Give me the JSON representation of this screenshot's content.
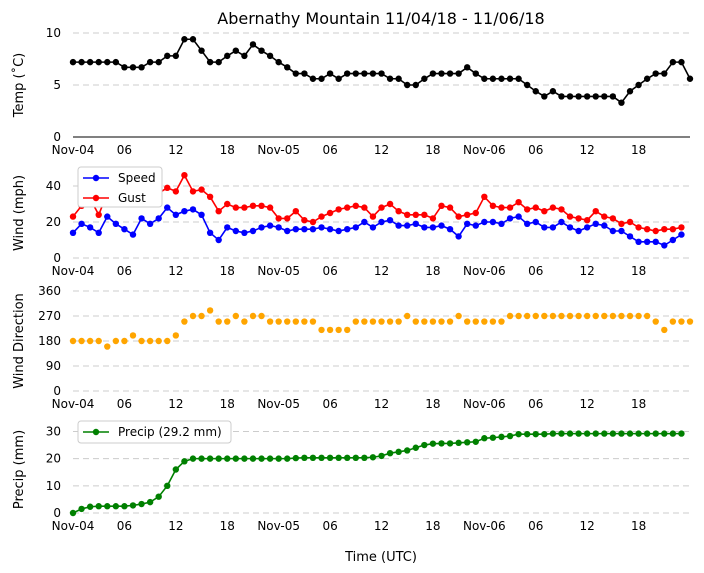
{
  "title": "Abernathy Mountain 11/04/18 - 11/06/18",
  "xlabel": "Time (UTC)",
  "x_ticks": [
    "Nov-04",
    "06",
    "12",
    "18",
    "Nov-05",
    "06",
    "12",
    "18",
    "Nov-06",
    "06",
    "12",
    "18"
  ],
  "colors": {
    "temp": "#000000",
    "speed": "#0000ff",
    "gust": "#ff0000",
    "direction": "#ffa500",
    "precip": "#008000",
    "grid": "#cccccc"
  },
  "chart_data": [
    {
      "type": "line",
      "id": "temp",
      "ylabel": "Temp (˚C)",
      "ylim": [
        0,
        10
      ],
      "yticks": [
        0,
        5,
        10
      ],
      "grid": true,
      "series": [
        {
          "name": "Temp",
          "color": "#000000",
          "values": [
            7.2,
            7.2,
            7.2,
            7.2,
            7.2,
            7.2,
            6.7,
            6.7,
            6.7,
            7.2,
            7.2,
            7.8,
            7.8,
            9.4,
            9.4,
            8.3,
            7.2,
            7.2,
            7.8,
            8.3,
            7.8,
            8.9,
            8.3,
            7.8,
            7.2,
            6.7,
            6.1,
            6.1,
            5.6,
            5.6,
            6.1,
            5.6,
            6.1,
            6.1,
            6.1,
            6.1,
            6.1,
            5.6,
            5.6,
            5.0,
            5.0,
            5.6,
            6.1,
            6.1,
            6.1,
            6.1,
            6.7,
            6.1,
            5.6,
            5.6,
            5.6,
            5.6,
            5.6,
            5.0,
            4.4,
            3.9,
            4.4,
            3.9,
            3.9,
            3.9,
            3.9,
            3.9,
            3.9,
            3.9,
            3.3,
            4.4,
            5.0,
            5.6,
            6.1,
            6.1,
            7.2,
            7.2,
            5.6
          ]
        }
      ]
    },
    {
      "type": "line",
      "id": "wind",
      "ylabel": "Wind (mph)",
      "ylim": [
        0,
        50
      ],
      "yticks": [
        0,
        20,
        40
      ],
      "grid": true,
      "legend": "top-left",
      "series": [
        {
          "name": "Speed",
          "color": "#0000ff",
          "values": [
            14,
            19,
            17,
            14,
            23,
            19,
            16,
            13,
            22,
            19,
            22,
            28,
            24,
            26,
            27,
            24,
            14,
            10,
            17,
            15,
            14,
            15,
            17,
            18,
            17,
            15,
            16,
            16,
            16,
            17,
            16,
            15,
            16,
            17,
            20,
            17,
            20,
            21,
            18,
            18,
            19,
            17,
            17,
            18,
            16,
            12,
            19,
            18,
            20,
            20,
            19,
            22,
            23,
            19,
            20,
            17,
            17,
            20,
            17,
            15,
            17,
            19,
            18,
            15,
            15,
            12,
            9,
            9,
            9,
            7,
            10,
            13
          ]
        },
        {
          "name": "Gust",
          "color": "#ff0000",
          "values": [
            23,
            29,
            33,
            24,
            36,
            39,
            33,
            31,
            31,
            33,
            36,
            39,
            37,
            46,
            37,
            38,
            34,
            26,
            30,
            28,
            28,
            29,
            29,
            28,
            22,
            22,
            26,
            21,
            20,
            23,
            25,
            27,
            28,
            29,
            28,
            23,
            28,
            30,
            26,
            24,
            24,
            24,
            22,
            29,
            28,
            23,
            24,
            25,
            34,
            29,
            28,
            28,
            31,
            27,
            28,
            26,
            28,
            27,
            23,
            22,
            21,
            26,
            23,
            22,
            19,
            20,
            17,
            16,
            15,
            16,
            16,
            17
          ]
        }
      ]
    },
    {
      "type": "scatter",
      "id": "direction",
      "ylabel": "Wind Direction",
      "ylim": [
        0,
        360
      ],
      "yticks": [
        0,
        90,
        180,
        270,
        360
      ],
      "grid": true,
      "series": [
        {
          "name": "Direction",
          "color": "#ffa500",
          "values": [
            180,
            180,
            180,
            180,
            160,
            180,
            180,
            200,
            180,
            180,
            180,
            180,
            200,
            250,
            270,
            270,
            290,
            250,
            250,
            270,
            250,
            270,
            270,
            250,
            250,
            250,
            250,
            250,
            250,
            220,
            220,
            220,
            220,
            250,
            250,
            250,
            250,
            250,
            250,
            270,
            250,
            250,
            250,
            250,
            250,
            270,
            250,
            250,
            250,
            250,
            250,
            270,
            270,
            270,
            270,
            270,
            270,
            270,
            270,
            270,
            270,
            270,
            270,
            270,
            270,
            270,
            270,
            270,
            250,
            220,
            250,
            250,
            250
          ]
        }
      ]
    },
    {
      "type": "line",
      "id": "precip",
      "ylabel": "Precip (mm)",
      "ylim": [
        0,
        32
      ],
      "yticks": [
        0,
        10,
        20,
        30
      ],
      "grid": true,
      "legend": "top-left",
      "series": [
        {
          "name": "Precip (29.2 mm)",
          "color": "#008000",
          "values": [
            0,
            1.5,
            2.3,
            2.5,
            2.5,
            2.5,
            2.5,
            2.8,
            3.3,
            4,
            6,
            10,
            16,
            19,
            20,
            20,
            20,
            20,
            20,
            20,
            20,
            20,
            20,
            20,
            20,
            20,
            20.2,
            20.3,
            20.3,
            20.3,
            20.3,
            20.3,
            20.3,
            20.3,
            20.3,
            20.5,
            21,
            22,
            22.5,
            23,
            24,
            25,
            25.5,
            25.6,
            25.6,
            25.8,
            26,
            26.2,
            27.5,
            27.7,
            28,
            28.3,
            29,
            29,
            29,
            29,
            29.2,
            29.2,
            29.2,
            29.2,
            29.2,
            29.2,
            29.2,
            29.2,
            29.2,
            29.2,
            29.2,
            29.2,
            29.2,
            29.2,
            29.2,
            29.2
          ]
        }
      ]
    }
  ]
}
